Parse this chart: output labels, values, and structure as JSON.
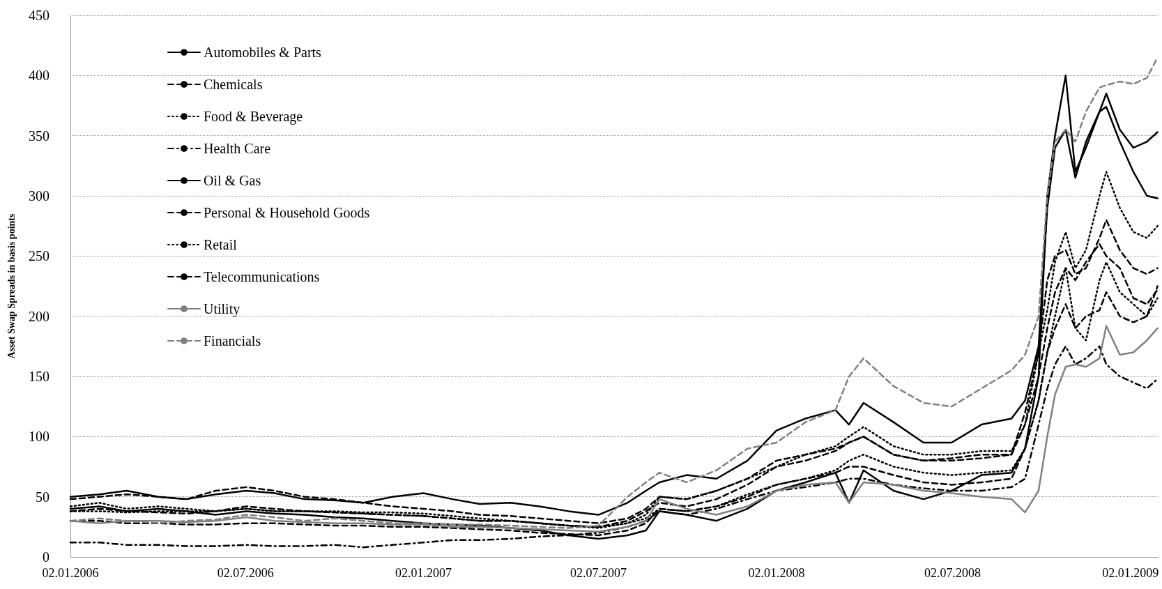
{
  "chart_data": {
    "type": "line",
    "ylabel": "Asset Swap Spreads in basis points",
    "x": [
      "2006-01-02",
      "2006-02-01",
      "2006-03-01",
      "2006-04-03",
      "2006-05-02",
      "2006-06-01",
      "2006-07-03",
      "2006-08-01",
      "2006-09-01",
      "2006-10-02",
      "2006-11-01",
      "2006-12-01",
      "2007-01-02",
      "2007-02-01",
      "2007-03-01",
      "2007-04-02",
      "2007-05-02",
      "2007-06-01",
      "2007-07-02",
      "2007-08-01",
      "2007-08-20",
      "2007-09-03",
      "2007-10-01",
      "2007-11-01",
      "2007-12-03",
      "2008-01-02",
      "2008-02-01",
      "2008-03-03",
      "2008-03-17",
      "2008-04-01",
      "2008-05-02",
      "2008-06-02",
      "2008-07-01",
      "2008-08-01",
      "2008-09-01",
      "2008-09-15",
      "2008-09-29",
      "2008-10-08",
      "2008-10-16",
      "2008-10-27",
      "2008-11-06",
      "2008-11-17",
      "2008-12-01",
      "2008-12-08",
      "2008-12-22",
      "2009-01-05",
      "2009-01-19",
      "2009-01-30"
    ],
    "series": [
      {
        "name": "Automobiles & Parts",
        "color": "#000000",
        "line_style": "solid",
        "values": [
          50,
          52,
          55,
          50,
          48,
          52,
          55,
          53,
          48,
          47,
          45,
          50,
          53,
          48,
          44,
          45,
          42,
          38,
          35,
          45,
          55,
          62,
          68,
          65,
          80,
          105,
          115,
          122,
          110,
          128,
          112,
          95,
          95,
          110,
          115,
          130,
          175,
          290,
          340,
          355,
          315,
          345,
          370,
          374,
          345,
          320,
          300,
          298
        ]
      },
      {
        "name": "Chemicals",
        "color": "#000000",
        "line_style": "dashed",
        "values": [
          38,
          40,
          38,
          37,
          36,
          38,
          42,
          40,
          38,
          37,
          36,
          35,
          34,
          32,
          30,
          30,
          28,
          26,
          25,
          30,
          38,
          45,
          42,
          48,
          60,
          75,
          80,
          88,
          95,
          100,
          85,
          80,
          80,
          82,
          85,
          110,
          150,
          190,
          220,
          240,
          230,
          245,
          260,
          250,
          240,
          215,
          210,
          222
        ]
      },
      {
        "name": "Food & Beverage",
        "color": "#000000",
        "line_style": "dotted",
        "values": [
          38,
          38,
          37,
          38,
          38,
          38,
          40,
          38,
          38,
          38,
          37,
          37,
          36,
          34,
          32,
          30,
          28,
          26,
          24,
          28,
          32,
          40,
          38,
          42,
          52,
          60,
          65,
          72,
          80,
          85,
          75,
          70,
          68,
          70,
          72,
          90,
          130,
          170,
          200,
          240,
          190,
          180,
          230,
          245,
          220,
          210,
          200,
          215
        ]
      },
      {
        "name": "Health Care",
        "color": "#000000",
        "line_style": "dashdot",
        "values": [
          12,
          12,
          10,
          10,
          9,
          9,
          10,
          9,
          9,
          10,
          8,
          10,
          12,
          14,
          14,
          15,
          17,
          18,
          20,
          25,
          30,
          38,
          35,
          40,
          48,
          55,
          58,
          62,
          65,
          65,
          60,
          57,
          55,
          55,
          58,
          65,
          110,
          140,
          160,
          175,
          160,
          165,
          175,
          160,
          150,
          145,
          140,
          148
        ]
      },
      {
        "name": "Oil & Gas",
        "color": "#000000",
        "line_style": "solid",
        "values": [
          40,
          42,
          38,
          40,
          38,
          35,
          38,
          36,
          35,
          33,
          32,
          30,
          28,
          27,
          26,
          24,
          22,
          18,
          15,
          18,
          22,
          38,
          35,
          30,
          40,
          55,
          62,
          70,
          45,
          72,
          55,
          48,
          55,
          68,
          70,
          90,
          150,
          300,
          350,
          400,
          320,
          340,
          370,
          385,
          355,
          340,
          345,
          353
        ]
      },
      {
        "name": "Personal & Household Goods",
        "color": "#000000",
        "line_style": "dashed",
        "values": [
          48,
          50,
          52,
          50,
          48,
          55,
          58,
          55,
          50,
          48,
          45,
          42,
          40,
          38,
          35,
          34,
          32,
          30,
          28,
          32,
          40,
          50,
          48,
          55,
          65,
          80,
          85,
          90,
          95,
          100,
          85,
          80,
          82,
          85,
          85,
          120,
          170,
          230,
          250,
          255,
          235,
          240,
          265,
          280,
          255,
          240,
          235,
          240
        ]
      },
      {
        "name": "Retail",
        "color": "#000000",
        "line_style": "dotted",
        "values": [
          42,
          45,
          40,
          42,
          40,
          38,
          40,
          38,
          38,
          37,
          36,
          35,
          34,
          32,
          30,
          30,
          28,
          26,
          25,
          28,
          35,
          50,
          48,
          55,
          65,
          75,
          85,
          92,
          100,
          108,
          92,
          85,
          85,
          88,
          88,
          110,
          170,
          205,
          245,
          270,
          240,
          255,
          300,
          320,
          290,
          270,
          265,
          275
        ]
      },
      {
        "name": "Telecommunications",
        "color": "#000000",
        "line_style": "dashed",
        "values": [
          30,
          30,
          28,
          28,
          27,
          27,
          28,
          28,
          27,
          26,
          26,
          25,
          25,
          24,
          23,
          22,
          20,
          19,
          18,
          22,
          28,
          40,
          38,
          42,
          50,
          60,
          65,
          70,
          75,
          75,
          68,
          62,
          60,
          62,
          65,
          90,
          130,
          170,
          190,
          210,
          190,
          200,
          205,
          220,
          200,
          195,
          200,
          225
        ]
      },
      {
        "name": "Utility",
        "color": "#808080",
        "line_style": "solid",
        "values": [
          30,
          28,
          30,
          30,
          29,
          30,
          33,
          30,
          29,
          28,
          28,
          27,
          27,
          25,
          25,
          24,
          23,
          22,
          21,
          25,
          30,
          48,
          40,
          35,
          42,
          55,
          60,
          62,
          45,
          62,
          60,
          55,
          53,
          50,
          48,
          37,
          55,
          100,
          135,
          158,
          160,
          158,
          165,
          192,
          168,
          170,
          180,
          190
        ]
      },
      {
        "name": "Financials",
        "color": "#808080",
        "line_style": "dashed",
        "values": [
          30,
          32,
          30,
          28,
          30,
          31,
          35,
          33,
          30,
          32,
          30,
          28,
          28,
          27,
          27,
          26,
          25,
          24,
          26,
          50,
          62,
          70,
          62,
          72,
          90,
          95,
          112,
          122,
          150,
          165,
          142,
          128,
          125,
          140,
          155,
          168,
          200,
          300,
          345,
          355,
          345,
          370,
          390,
          392,
          395,
          393,
          398,
          415
        ]
      }
    ],
    "xlim": [
      "2006-01-02",
      "2009-01-31"
    ],
    "xticks": [
      {
        "value": "2006-01-02",
        "label": "02.01.2006"
      },
      {
        "value": "2006-07-02",
        "label": "02.07.2006"
      },
      {
        "value": "2007-01-02",
        "label": "02.01.2007"
      },
      {
        "value": "2007-07-02",
        "label": "02.07.2007"
      },
      {
        "value": "2008-01-02",
        "label": "02.01.2008"
      },
      {
        "value": "2008-07-02",
        "label": "02.07.2008"
      },
      {
        "value": "2009-01-02",
        "label": "02.01.2009"
      }
    ],
    "ylim": [
      0,
      450
    ],
    "yticks": [
      0,
      50,
      100,
      150,
      200,
      250,
      300,
      350,
      400,
      450
    ],
    "grid": "y",
    "legend": "top left",
    "marker": "none"
  }
}
